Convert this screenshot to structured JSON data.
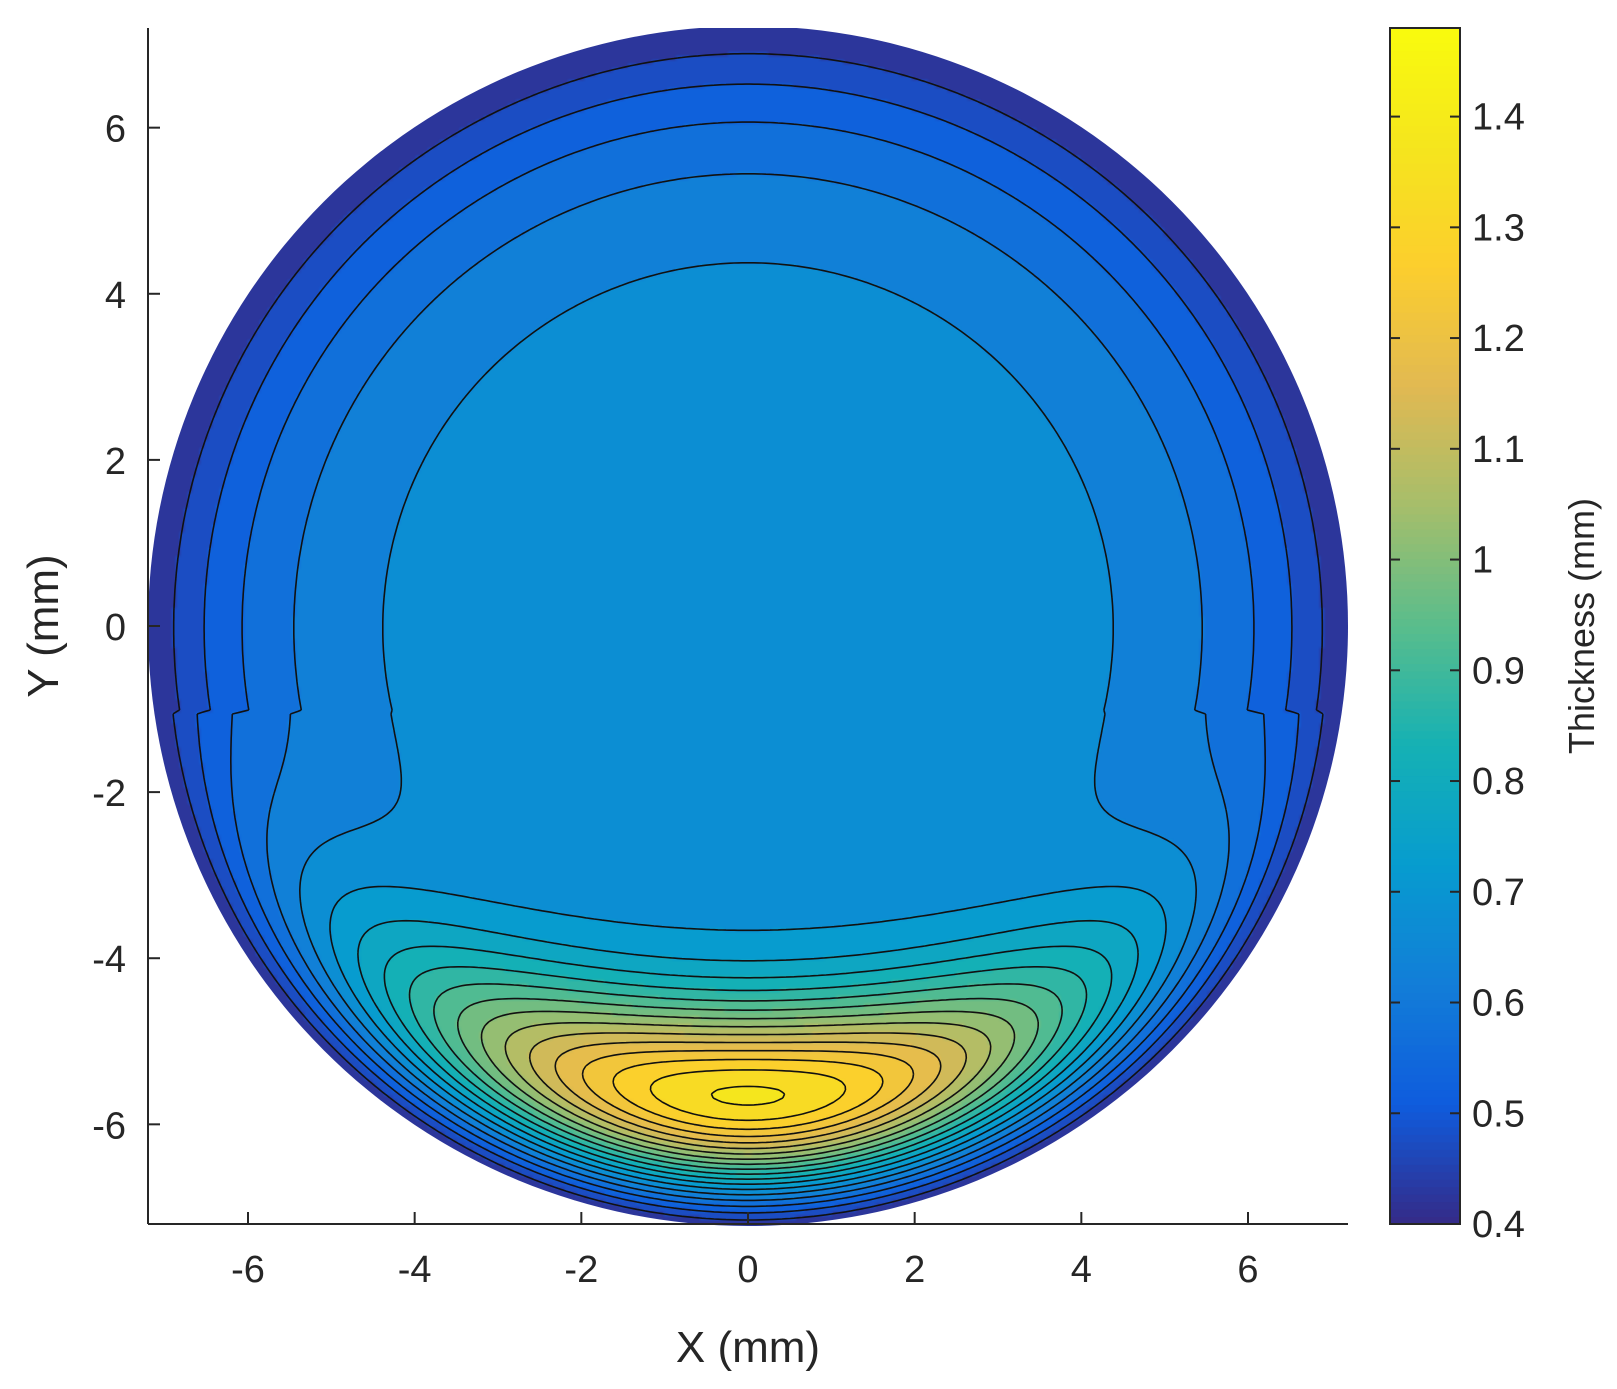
{
  "chart_data": {
    "type": "heatmap",
    "subtype": "filled-contour",
    "xlabel": "X (mm)",
    "ylabel": "Y (mm)",
    "colorbar_label": "Thickness (mm)",
    "xlim": [
      -7.2,
      7.2
    ],
    "ylim": [
      -7.2,
      7.2
    ],
    "xticks": [
      -6,
      -4,
      -2,
      0,
      2,
      4,
      6
    ],
    "yticks": [
      6,
      4,
      2,
      0,
      -2,
      -4,
      -6
    ],
    "xtick_labels": [
      "-6",
      "-4",
      "-2",
      "0",
      "2",
      "4",
      "6"
    ],
    "ytick_labels": [
      "6",
      "4",
      "2",
      "0",
      "-2",
      "-4",
      "-6"
    ],
    "colorbar_range": [
      0.4,
      1.48
    ],
    "colorbar_ticks": [
      1.4,
      1.3,
      1.2,
      1.1,
      1,
      0.9,
      0.8,
      0.7,
      0.6,
      0.5,
      0.4
    ],
    "colorbar_tick_labels": [
      "1.4",
      "1.3",
      "1.2",
      "1.1",
      "1",
      "0.9",
      "0.8",
      "0.7",
      "0.6",
      "0.5",
      "0.4"
    ],
    "colormap": "parula",
    "domain": {
      "shape": "disk",
      "center": [
        0,
        0
      ],
      "radius_mm": 7.2
    },
    "thickness_model": {
      "description": "thin periphery (~0.4 mm), plateau ~0.68 mm in the central region, thick crescent peaking ~1.48 mm near (0, -5.8)",
      "center_value": 0.68,
      "edge_value": 0.4,
      "peak": {
        "x": 0,
        "y": -5.8,
        "value": 1.48
      }
    },
    "contour_levels": [
      0.45,
      0.5,
      0.55,
      0.6,
      0.65,
      0.7,
      0.75,
      0.8,
      0.85,
      0.9,
      0.95,
      1.0,
      1.05,
      1.1,
      1.15,
      1.2,
      1.25,
      1.3,
      1.35,
      1.4,
      1.45
    ],
    "grid": false
  }
}
